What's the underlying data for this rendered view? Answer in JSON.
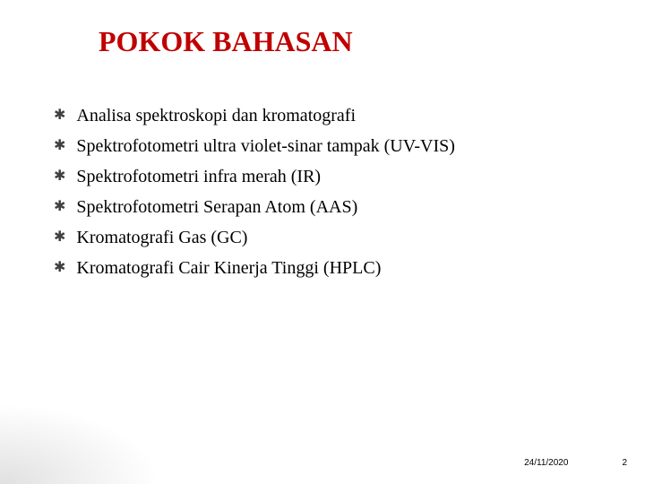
{
  "title": "POKOK BAHASAN",
  "bullets": [
    "Analisa spektroskopi dan kromatografi",
    "Spektrofotometri  ultra violet-sinar tampak (UV-VIS)",
    "Spektrofotometri infra merah (IR)",
    "Spektrofotometri Serapan Atom (AAS)",
    "Kromatografi Gas (GC)",
    "Kromatografi Cair Kinerja Tinggi (HPLC)"
  ],
  "footer": {
    "date": "24/11/2020",
    "page": "2"
  },
  "colors": {
    "title_color": "#c00000",
    "text_color": "#000000",
    "bullet_marker_color": "#404040",
    "background": "#ffffff"
  },
  "typography": {
    "title_fontsize": 32,
    "body_fontsize": 20,
    "footer_fontsize": 10,
    "title_weight": "bold",
    "font_family": "Georgia, Times New Roman, serif"
  },
  "bullet_marker": "✱"
}
